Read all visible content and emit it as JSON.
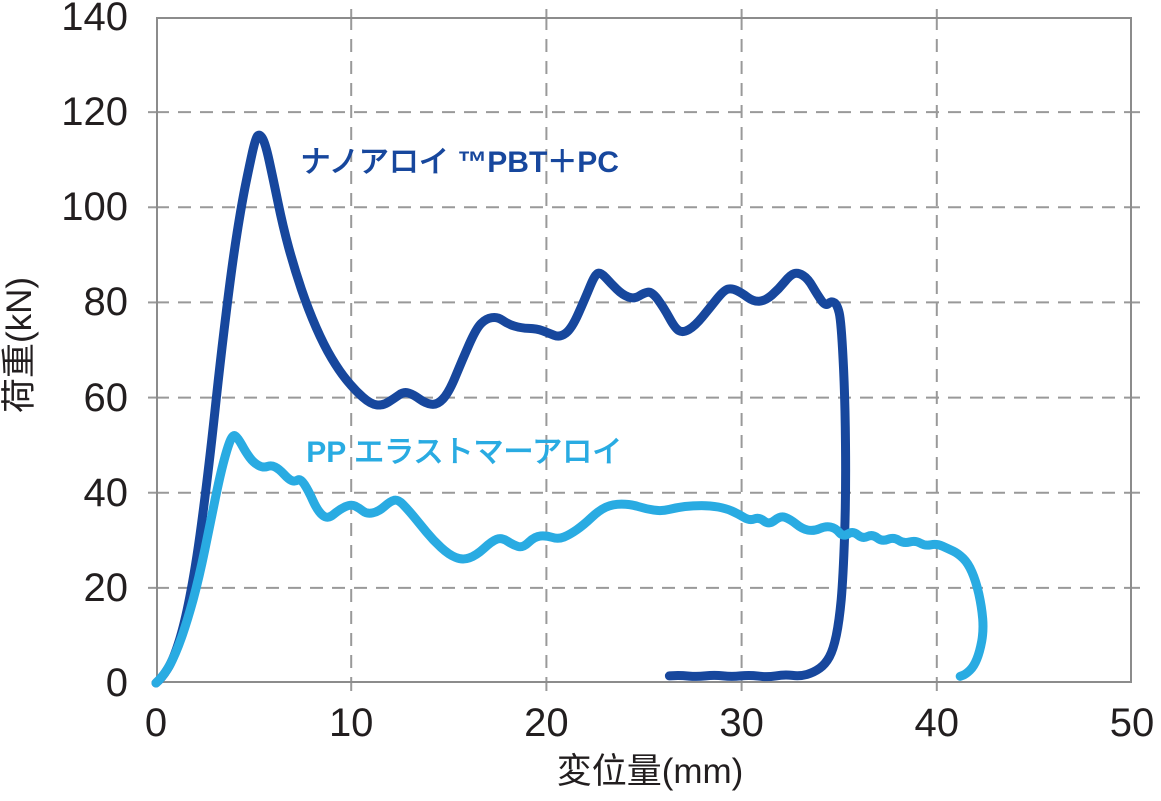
{
  "chart_data": {
    "type": "line",
    "title": "",
    "xlabel": "変位量(mm)",
    "ylabel": "荷重(kN)",
    "xlim": [
      0,
      50
    ],
    "ylim": [
      0,
      140
    ],
    "xticks": [
      0,
      10,
      20,
      30,
      40,
      50
    ],
    "yticks": [
      0,
      20,
      40,
      60,
      80,
      100,
      120,
      140
    ],
    "grid": "dashed",
    "grid_color": "#999999",
    "border_color": "#8c8c8c",
    "tick_label_color": "#221e1f",
    "legend_position": "inline-annotations",
    "series": [
      {
        "name": "ナノアロイ ™PBT＋PC",
        "color": "#17479D",
        "stroke_width": 9,
        "label_anchor": {
          "x": 7.4,
          "y": 109.3
        },
        "points": [
          [
            0,
            0
          ],
          [
            0.3,
            1
          ],
          [
            0.9,
            5
          ],
          [
            1.5,
            13
          ],
          [
            2.1,
            26
          ],
          [
            2.7,
            45
          ],
          [
            3.3,
            68
          ],
          [
            3.9,
            88
          ],
          [
            4.4,
            101
          ],
          [
            4.8,
            109
          ],
          [
            5.1,
            114.5
          ],
          [
            5.3,
            115.5
          ],
          [
            5.6,
            113.5
          ],
          [
            6.0,
            106
          ],
          [
            6.5,
            96
          ],
          [
            7.1,
            87
          ],
          [
            7.8,
            78.5
          ],
          [
            8.6,
            71
          ],
          [
            9.4,
            65.5
          ],
          [
            10.2,
            61.5
          ],
          [
            11.0,
            58.6
          ],
          [
            11.6,
            58.3
          ],
          [
            12.2,
            59.8
          ],
          [
            12.7,
            61.3
          ],
          [
            13.2,
            60.6
          ],
          [
            13.8,
            58.8
          ],
          [
            14.4,
            58.4
          ],
          [
            15.0,
            61
          ],
          [
            15.7,
            68
          ],
          [
            16.4,
            74.5
          ],
          [
            16.9,
            76.6
          ],
          [
            17.5,
            77
          ],
          [
            18.0,
            75.5
          ],
          [
            18.7,
            74.6
          ],
          [
            19.5,
            74.5
          ],
          [
            20.1,
            73.6
          ],
          [
            20.7,
            72.6
          ],
          [
            21.3,
            74.5
          ],
          [
            22.0,
            81
          ],
          [
            22.5,
            86
          ],
          [
            22.8,
            86.3
          ],
          [
            23.3,
            84
          ],
          [
            23.9,
            81.6
          ],
          [
            24.5,
            80.7
          ],
          [
            25.0,
            82
          ],
          [
            25.4,
            82.3
          ],
          [
            26.0,
            79
          ],
          [
            26.6,
            74.5
          ],
          [
            27.0,
            73.6
          ],
          [
            27.6,
            75
          ],
          [
            28.4,
            79
          ],
          [
            29.1,
            82.6
          ],
          [
            29.5,
            83
          ],
          [
            30.0,
            82
          ],
          [
            30.6,
            80.2
          ],
          [
            31.2,
            80.3
          ],
          [
            31.9,
            82.8
          ],
          [
            32.5,
            85.8
          ],
          [
            32.9,
            86.3
          ],
          [
            33.4,
            85
          ],
          [
            33.9,
            81.5
          ],
          [
            34.3,
            79.2
          ],
          [
            34.6,
            80.3
          ],
          [
            34.9,
            79.6
          ],
          [
            35.1,
            76
          ],
          [
            35.3,
            60
          ],
          [
            35.35,
            40
          ],
          [
            35.2,
            22
          ],
          [
            35.0,
            13
          ],
          [
            34.7,
            7
          ],
          [
            34.3,
            4
          ],
          [
            33.7,
            2.2
          ],
          [
            33.0,
            1.4
          ],
          [
            32.2,
            1.8
          ],
          [
            31.3,
            1.2
          ],
          [
            30.4,
            1.7
          ],
          [
            29.5,
            1.3
          ],
          [
            28.6,
            1.7
          ],
          [
            27.7,
            1.3
          ],
          [
            26.9,
            1.6
          ],
          [
            26.3,
            1.5
          ]
        ]
      },
      {
        "name": "PP エラストマーアロイ",
        "color": "#29ABE2",
        "stroke_width": 9,
        "label_anchor": {
          "x": 7.7,
          "y": 48.3
        },
        "points": [
          [
            0,
            0
          ],
          [
            0.4,
            1.5
          ],
          [
            1.0,
            6
          ],
          [
            1.6,
            13
          ],
          [
            2.2,
            22
          ],
          [
            2.8,
            34
          ],
          [
            3.3,
            44
          ],
          [
            3.7,
            50
          ],
          [
            3.95,
            52.3
          ],
          [
            4.2,
            51.5
          ],
          [
            4.6,
            48.5
          ],
          [
            5.0,
            46.3
          ],
          [
            5.5,
            45.2
          ],
          [
            5.9,
            45.8
          ],
          [
            6.3,
            45
          ],
          [
            6.8,
            42.8
          ],
          [
            7.1,
            42.3
          ],
          [
            7.4,
            43
          ],
          [
            7.8,
            40.5
          ],
          [
            8.3,
            36
          ],
          [
            8.8,
            34.4
          ],
          [
            9.4,
            36.5
          ],
          [
            10.0,
            37.6
          ],
          [
            10.4,
            36.8
          ],
          [
            10.8,
            35.5
          ],
          [
            11.4,
            36
          ],
          [
            12.0,
            38.2
          ],
          [
            12.4,
            38.6
          ],
          [
            12.9,
            36.5
          ],
          [
            13.5,
            33.5
          ],
          [
            14.2,
            30
          ],
          [
            15.0,
            27
          ],
          [
            15.7,
            25.8
          ],
          [
            16.4,
            26.8
          ],
          [
            17.2,
            29.8
          ],
          [
            17.7,
            30.6
          ],
          [
            18.3,
            29
          ],
          [
            18.8,
            28.4
          ],
          [
            19.4,
            30.8
          ],
          [
            20.0,
            31
          ],
          [
            20.6,
            30.2
          ],
          [
            21.2,
            31.2
          ],
          [
            21.9,
            33.2
          ],
          [
            22.7,
            36.3
          ],
          [
            23.4,
            37.6
          ],
          [
            24.3,
            37.6
          ],
          [
            25.1,
            36.6
          ],
          [
            25.9,
            36.1
          ],
          [
            26.7,
            36.9
          ],
          [
            27.5,
            37.3
          ],
          [
            28.4,
            37.3
          ],
          [
            29.2,
            36.7
          ],
          [
            29.8,
            35.6
          ],
          [
            30.4,
            34.1
          ],
          [
            30.9,
            34.9
          ],
          [
            31.4,
            33.2
          ],
          [
            32.0,
            35.2
          ],
          [
            32.5,
            34.4
          ],
          [
            33.1,
            32.4
          ],
          [
            33.7,
            31.9
          ],
          [
            34.3,
            33
          ],
          [
            34.8,
            32.6
          ],
          [
            35.2,
            30.7
          ],
          [
            35.7,
            32
          ],
          [
            36.2,
            30.3
          ],
          [
            36.7,
            31.3
          ],
          [
            37.2,
            29.7
          ],
          [
            37.8,
            30.7
          ],
          [
            38.3,
            29.3
          ],
          [
            38.9,
            30
          ],
          [
            39.4,
            28.8
          ],
          [
            40.0,
            29.3
          ],
          [
            40.6,
            28.2
          ],
          [
            41.1,
            27.2
          ],
          [
            41.6,
            25.2
          ],
          [
            42.0,
            21.5
          ],
          [
            42.3,
            16
          ],
          [
            42.4,
            11
          ],
          [
            42.2,
            6.5
          ],
          [
            41.9,
            3.5
          ],
          [
            41.5,
            1.9
          ],
          [
            41.2,
            1.4
          ]
        ]
      }
    ]
  }
}
